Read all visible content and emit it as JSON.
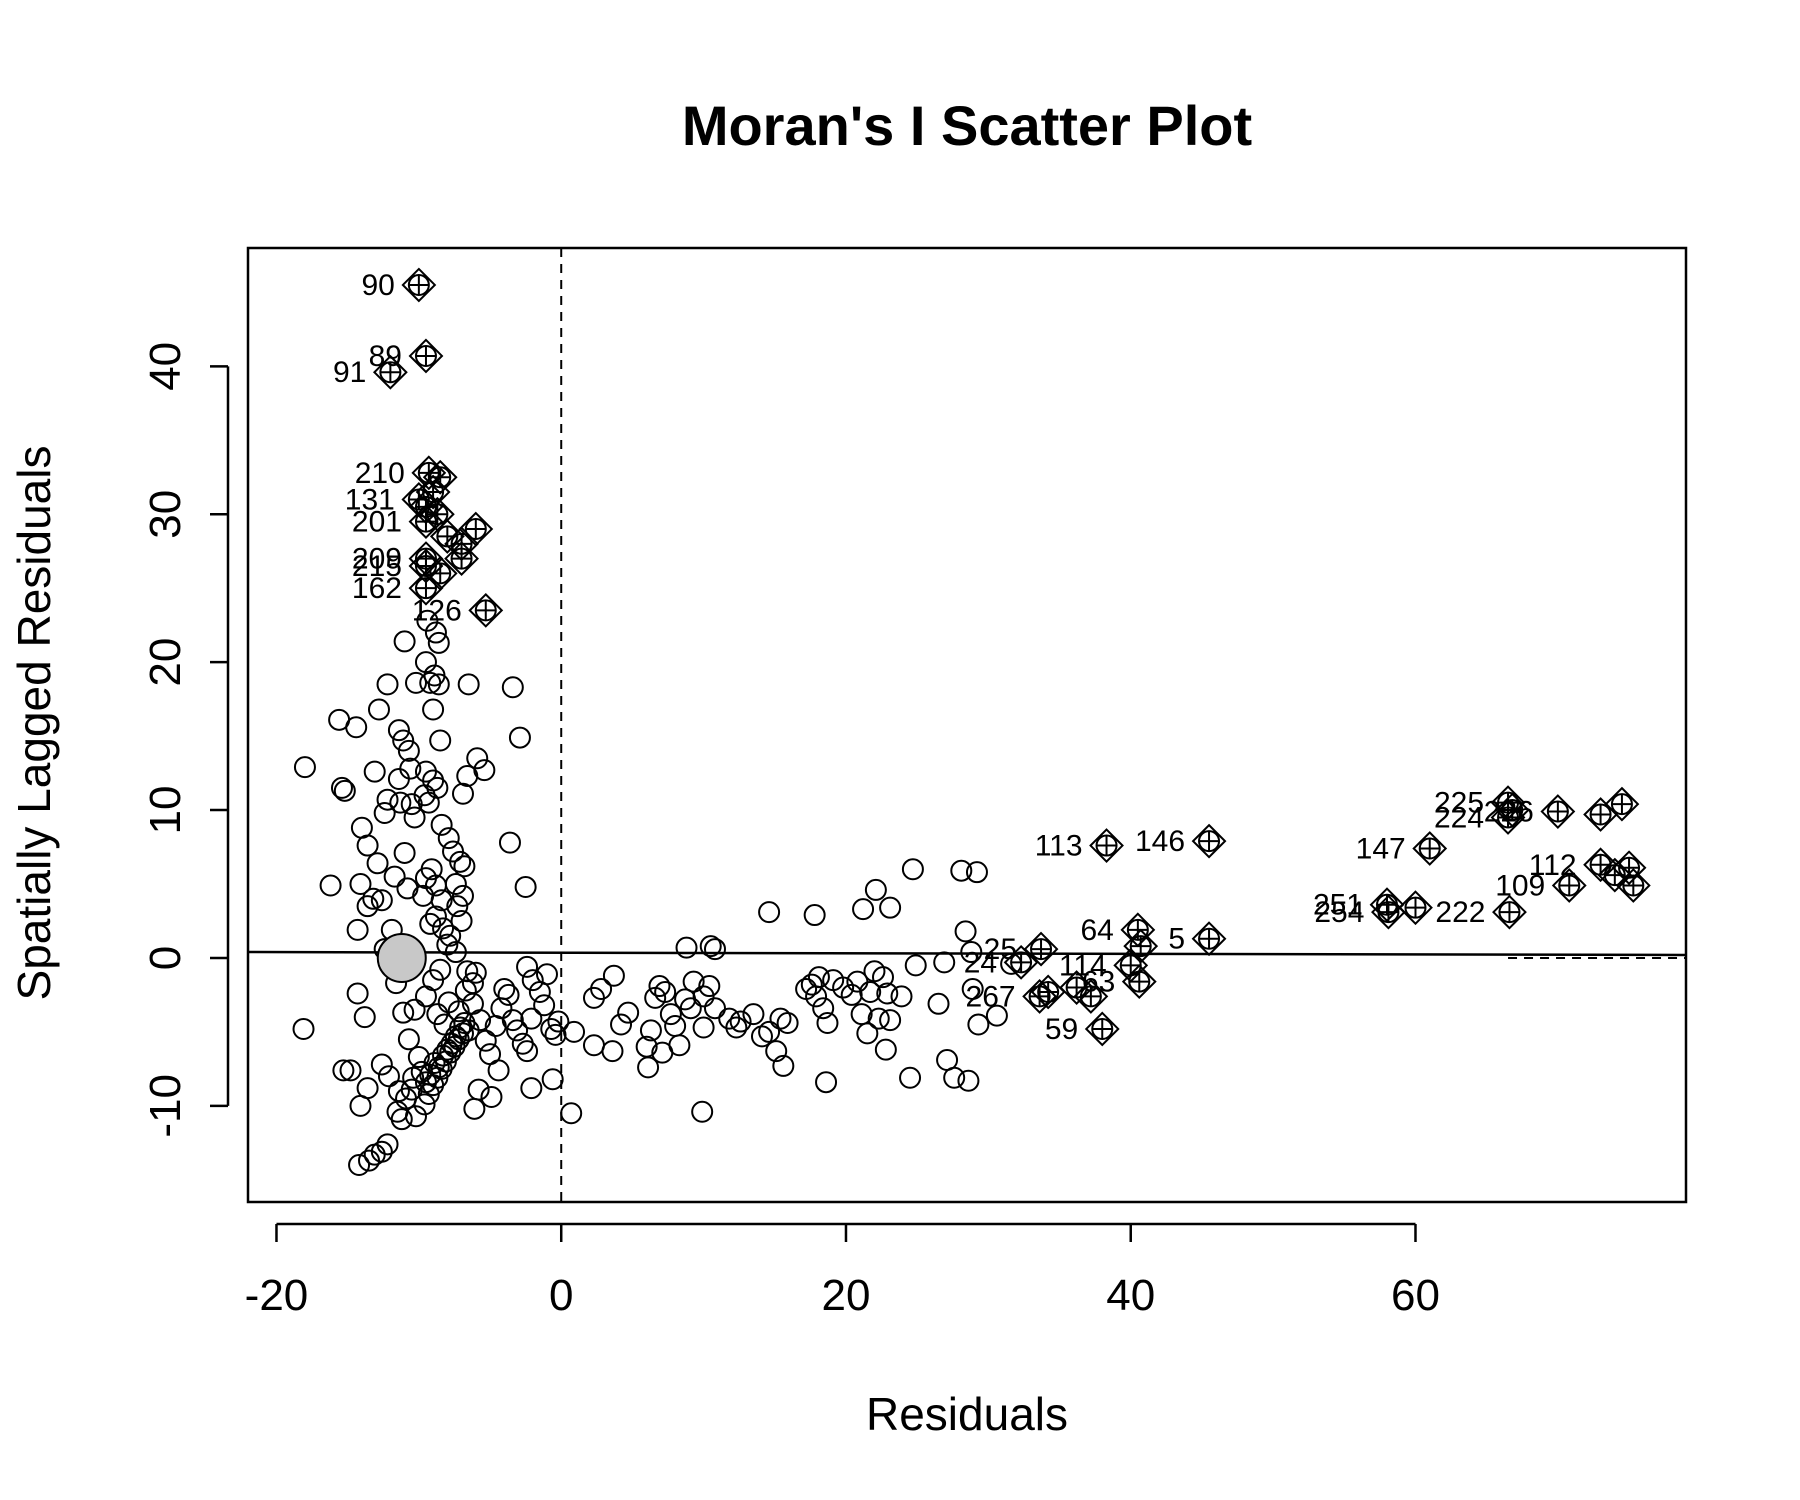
{
  "chart_data": {
    "type": "scatter",
    "title": "Moran's I Scatter Plot",
    "xlabel": "Residuals",
    "ylabel": "Spatially Lagged Residuals",
    "xlim": [
      -22,
      79
    ],
    "ylim": [
      -16.5,
      48
    ],
    "xticks": [
      -20,
      0,
      20,
      40,
      60
    ],
    "yticks": [
      -10,
      0,
      10,
      20,
      30,
      40
    ],
    "grid": false,
    "vline_x": 0,
    "hline_y": 0,
    "mean_point": {
      "x": -11.2,
      "y": 0
    },
    "regression_line": {
      "y_at_xmin": 0.4,
      "y_at_xmax": 0.2
    },
    "influential_points": [
      {
        "label": "90",
        "x": -10,
        "y": 45.5
      },
      {
        "label": "89",
        "x": -9.5,
        "y": 40.7
      },
      {
        "label": "91",
        "x": -12,
        "y": 39.6
      },
      {
        "label": "210",
        "x": -9.3,
        "y": 32.8
      },
      {
        "label": "131",
        "x": -10,
        "y": 31
      },
      {
        "label": "",
        "x": -9.5,
        "y": 30.5
      },
      {
        "label": "",
        "x": -8.5,
        "y": 32.5
      },
      {
        "label": "",
        "x": -9,
        "y": 31.5
      },
      {
        "label": "",
        "x": -8.7,
        "y": 30
      },
      {
        "label": "201",
        "x": -9.5,
        "y": 29.5
      },
      {
        "label": "",
        "x": -6,
        "y": 29
      },
      {
        "label": "",
        "x": -7,
        "y": 28
      },
      {
        "label": "",
        "x": -8,
        "y": 28.5
      },
      {
        "label": "209",
        "x": -9.5,
        "y": 27
      },
      {
        "label": "",
        "x": -7,
        "y": 27
      },
      {
        "label": "",
        "x": -8.5,
        "y": 26
      },
      {
        "label": "215",
        "x": -9.5,
        "y": 26.5
      },
      {
        "label": "162",
        "x": -9.5,
        "y": 25
      },
      {
        "label": "126",
        "x": -5.3,
        "y": 23.5
      },
      {
        "label": "113",
        "x": 38.3,
        "y": 7.6
      },
      {
        "label": "146",
        "x": 45.5,
        "y": 7.9
      },
      {
        "label": "147",
        "x": 61,
        "y": 7.4
      },
      {
        "label": "225",
        "x": 66.5,
        "y": 10.5
      },
      {
        "label": "224",
        "x": 66.5,
        "y": 9.5
      },
      {
        "label": "",
        "x": 66.8,
        "y": 10
      },
      {
        "label": "226",
        "x": 70,
        "y": 9.9
      },
      {
        "label": "",
        "x": 73,
        "y": 9.7
      },
      {
        "label": "",
        "x": 74.5,
        "y": 10.4
      },
      {
        "label": "112",
        "x": 73,
        "y": 6.3
      },
      {
        "label": "",
        "x": 75,
        "y": 6.1
      },
      {
        "label": "",
        "x": 74,
        "y": 5.6
      },
      {
        "label": "109",
        "x": 70.8,
        "y": 4.9
      },
      {
        "label": "",
        "x": 75.3,
        "y": 4.9
      },
      {
        "label": "251",
        "x": 58,
        "y": 3.6
      },
      {
        "label": "254",
        "x": 58.1,
        "y": 3.1
      },
      {
        "label": "",
        "x": 60,
        "y": 3.4
      },
      {
        "label": "222",
        "x": 66.6,
        "y": 3.1
      },
      {
        "label": "64",
        "x": 40.5,
        "y": 1.9
      },
      {
        "label": "5",
        "x": 45.5,
        "y": 1.3
      },
      {
        "label": "",
        "x": 40.7,
        "y": 0.8
      },
      {
        "label": "25",
        "x": 33.7,
        "y": 0.6
      },
      {
        "label": "24",
        "x": 32.3,
        "y": -0.3
      },
      {
        "label": "114",
        "x": 40,
        "y": -0.5
      },
      {
        "label": "63",
        "x": 40.6,
        "y": -1.6
      },
      {
        "label": "",
        "x": 36.2,
        "y": -2
      },
      {
        "label": "267",
        "x": 33.6,
        "y": -2.6
      },
      {
        "label": "",
        "x": 34.2,
        "y": -2.3
      },
      {
        "label": "",
        "x": 37.2,
        "y": -2.6
      },
      {
        "label": "59",
        "x": 38,
        "y": -4.8
      }
    ],
    "points": [
      {
        "x": -18,
        "y": 12.9
      },
      {
        "x": -18.1,
        "y": -4.8
      },
      {
        "x": -15.6,
        "y": 16.1
      },
      {
        "x": -15.4,
        "y": 11.5
      },
      {
        "x": -15.2,
        "y": 11.3
      },
      {
        "x": -14.4,
        "y": 15.6
      },
      {
        "x": -16.2,
        "y": 4.9
      },
      {
        "x": -15.3,
        "y": -7.6
      },
      {
        "x": -14.8,
        "y": -7.6
      },
      {
        "x": -14.2,
        "y": -14
      },
      {
        "x": -13.5,
        "y": -13.7
      },
      {
        "x": -13.1,
        "y": -13.3
      },
      {
        "x": -12.6,
        "y": -13.1
      },
      {
        "x": -12.2,
        "y": -12.6
      },
      {
        "x": -14.1,
        "y": -10
      },
      {
        "x": -13.6,
        "y": -8.8
      },
      {
        "x": -12.6,
        "y": -7.2
      },
      {
        "x": -12.1,
        "y": -8
      },
      {
        "x": -11.5,
        "y": -10.4
      },
      {
        "x": -11.2,
        "y": -10.9
      },
      {
        "x": -11.4,
        "y": -9
      },
      {
        "x": -10.9,
        "y": -9.5
      },
      {
        "x": -10.5,
        "y": -8.9
      },
      {
        "x": -10.2,
        "y": -10.7
      },
      {
        "x": -14.3,
        "y": -2.4
      },
      {
        "x": -13.8,
        "y": -4
      },
      {
        "x": -14.1,
        "y": 5
      },
      {
        "x": -13.6,
        "y": 3.5
      },
      {
        "x": -13.2,
        "y": 4
      },
      {
        "x": -14.3,
        "y": 1.9
      },
      {
        "x": -12.9,
        "y": 6.4
      },
      {
        "x": -13.6,
        "y": 7.6
      },
      {
        "x": -14,
        "y": 8.8
      },
      {
        "x": -12.4,
        "y": 9.8
      },
      {
        "x": -12.2,
        "y": 10.7
      },
      {
        "x": -13.1,
        "y": 12.6
      },
      {
        "x": -12.8,
        "y": 16.8
      },
      {
        "x": -12.2,
        "y": 18.5
      },
      {
        "x": -11.4,
        "y": 15.4
      },
      {
        "x": -11.1,
        "y": 14.7
      },
      {
        "x": -10.7,
        "y": 14
      },
      {
        "x": -11,
        "y": 21.4
      },
      {
        "x": -10.2,
        "y": 18.6
      },
      {
        "x": -10.6,
        "y": 12.8
      },
      {
        "x": -11.4,
        "y": 12.1
      },
      {
        "x": -11.3,
        "y": 10.5
      },
      {
        "x": -10.5,
        "y": 10.4
      },
      {
        "x": -10.3,
        "y": 9.5
      },
      {
        "x": -11,
        "y": 7.1
      },
      {
        "x": -11.7,
        "y": 5.5
      },
      {
        "x": -10.8,
        "y": 4.7
      },
      {
        "x": -12.6,
        "y": 3.9
      },
      {
        "x": -11.9,
        "y": 1.9
      },
      {
        "x": -12.4,
        "y": 0.6
      },
      {
        "x": -11.6,
        "y": -1.7
      },
      {
        "x": -11.1,
        "y": -3.7
      },
      {
        "x": -10.3,
        "y": -3.5
      },
      {
        "x": -10.7,
        "y": -5.5
      },
      {
        "x": -10,
        "y": -6.7
      },
      {
        "x": -10.4,
        "y": -8.1
      },
      {
        "x": -9.8,
        "y": -7.7
      },
      {
        "x": -9.5,
        "y": -8.4
      },
      {
        "x": -9.2,
        "y": -7.9
      },
      {
        "x": -8.9,
        "y": -7.1
      },
      {
        "x": -8.6,
        "y": -7.4
      },
      {
        "x": -8.3,
        "y": -6.6
      },
      {
        "x": -8,
        "y": -6.2
      },
      {
        "x": -7.7,
        "y": -5.8
      },
      {
        "x": -7.4,
        "y": -5.3
      },
      {
        "x": -7.1,
        "y": -4.7
      },
      {
        "x": -6.8,
        "y": -4.4
      },
      {
        "x": -6.5,
        "y": -4.9
      },
      {
        "x": -9.6,
        "y": -9.9
      },
      {
        "x": -9.3,
        "y": -9.2
      },
      {
        "x": -9,
        "y": -8.6
      },
      {
        "x": -8.7,
        "y": -8.1
      },
      {
        "x": -8.4,
        "y": -7.5
      },
      {
        "x": -8.1,
        "y": -7
      },
      {
        "x": -7.8,
        "y": -6.4
      },
      {
        "x": -7.5,
        "y": -6
      },
      {
        "x": -7.2,
        "y": -5.5
      },
      {
        "x": -6.9,
        "y": -5.1
      },
      {
        "x": -9.4,
        "y": 22.8
      },
      {
        "x": -8.8,
        "y": 22
      },
      {
        "x": -8.6,
        "y": 21.3
      },
      {
        "x": -9.5,
        "y": 20
      },
      {
        "x": -8.9,
        "y": 19.1
      },
      {
        "x": -9.2,
        "y": 18.6
      },
      {
        "x": -8.6,
        "y": 18.5
      },
      {
        "x": -9,
        "y": 16.8
      },
      {
        "x": -8.5,
        "y": 14.7
      },
      {
        "x": -9.5,
        "y": 12.6
      },
      {
        "x": -9,
        "y": 12
      },
      {
        "x": -8.7,
        "y": 11.5
      },
      {
        "x": -9.6,
        "y": 11
      },
      {
        "x": -9.3,
        "y": 10.5
      },
      {
        "x": -8.4,
        "y": 9
      },
      {
        "x": -7.9,
        "y": 8.1
      },
      {
        "x": -7.6,
        "y": 7.2
      },
      {
        "x": -7.1,
        "y": 6.5
      },
      {
        "x": -6.8,
        "y": 6.2
      },
      {
        "x": -7.4,
        "y": 5
      },
      {
        "x": -6.9,
        "y": 4.2
      },
      {
        "x": -7.3,
        "y": 3.5
      },
      {
        "x": -7,
        "y": 2.5
      },
      {
        "x": -7.8,
        "y": 1.5
      },
      {
        "x": -8.3,
        "y": 2
      },
      {
        "x": -8.8,
        "y": 2.8
      },
      {
        "x": -9.2,
        "y": 2.3
      },
      {
        "x": -9.7,
        "y": 4.2
      },
      {
        "x": -9.5,
        "y": 5.4
      },
      {
        "x": -9.1,
        "y": 6
      },
      {
        "x": -8.8,
        "y": 4.9
      },
      {
        "x": -8.4,
        "y": 3.9
      },
      {
        "x": -8,
        "y": 0.9
      },
      {
        "x": -7.4,
        "y": 0.4
      },
      {
        "x": -6.6,
        "y": -0.9
      },
      {
        "x": -6.2,
        "y": -1.7
      },
      {
        "x": -6.7,
        "y": -2.2
      },
      {
        "x": -8.5,
        "y": -0.8
      },
      {
        "x": -9,
        "y": -1.5
      },
      {
        "x": -9.5,
        "y": -2.6
      },
      {
        "x": -8.7,
        "y": -3.8
      },
      {
        "x": -8.2,
        "y": -4.5
      },
      {
        "x": -7.9,
        "y": -3
      },
      {
        "x": -7.2,
        "y": -3.6
      },
      {
        "x": -6.9,
        "y": 11.1
      },
      {
        "x": -6.6,
        "y": 12.3
      },
      {
        "x": -5.9,
        "y": 13.5
      },
      {
        "x": -5.4,
        "y": 12.7
      },
      {
        "x": -6.5,
        "y": 18.5
      },
      {
        "x": -3.4,
        "y": 18.3
      },
      {
        "x": -2.9,
        "y": 14.9
      },
      {
        "x": -3.6,
        "y": 7.8
      },
      {
        "x": -2.5,
        "y": 4.8
      },
      {
        "x": -6,
        "y": -1
      },
      {
        "x": -6.2,
        "y": -3.1
      },
      {
        "x": -5.7,
        "y": -4.2
      },
      {
        "x": -5.3,
        "y": -5.6
      },
      {
        "x": -5,
        "y": -6.5
      },
      {
        "x": -4.6,
        "y": -4.6
      },
      {
        "x": -4.2,
        "y": -3.4
      },
      {
        "x": -4,
        "y": -2.1
      },
      {
        "x": -3.7,
        "y": -2.5
      },
      {
        "x": -3.4,
        "y": -4.2
      },
      {
        "x": -3.1,
        "y": -4.9
      },
      {
        "x": -2.7,
        "y": -5.8
      },
      {
        "x": -2.4,
        "y": -6.3
      },
      {
        "x": -2.1,
        "y": -4.1
      },
      {
        "x": -2.4,
        "y": -0.6
      },
      {
        "x": -2,
        "y": -1.5
      },
      {
        "x": -1.5,
        "y": -2.3
      },
      {
        "x": -1.2,
        "y": -3.2
      },
      {
        "x": -1,
        "y": -1.1
      },
      {
        "x": -0.7,
        "y": -4.8
      },
      {
        "x": -0.4,
        "y": -5.2
      },
      {
        "x": -0.2,
        "y": -4.3
      },
      {
        "x": -2.1,
        "y": -8.8
      },
      {
        "x": -4.4,
        "y": -7.6
      },
      {
        "x": -4.9,
        "y": -9.4
      },
      {
        "x": -5.8,
        "y": -8.9
      },
      {
        "x": -6.1,
        "y": -10.2
      },
      {
        "x": -0.6,
        "y": -8.2
      },
      {
        "x": 0.7,
        "y": -10.5
      },
      {
        "x": 0.9,
        "y": -5
      },
      {
        "x": 2.3,
        "y": -2.7
      },
      {
        "x": 2.8,
        "y": -2.1
      },
      {
        "x": 3.7,
        "y": -1.2
      },
      {
        "x": 2.3,
        "y": -5.9
      },
      {
        "x": 3.6,
        "y": -6.3
      },
      {
        "x": 4.2,
        "y": -4.5
      },
      {
        "x": 4.7,
        "y": -3.7
      },
      {
        "x": 6,
        "y": -6
      },
      {
        "x": 6.1,
        "y": -7.4
      },
      {
        "x": 6.3,
        "y": -4.9
      },
      {
        "x": 6.6,
        "y": -2.7
      },
      {
        "x": 6.9,
        "y": -1.9
      },
      {
        "x": 7.3,
        "y": -2.3
      },
      {
        "x": 7.7,
        "y": -3.8
      },
      {
        "x": 8,
        "y": -4.6
      },
      {
        "x": 8.3,
        "y": -5.9
      },
      {
        "x": 8.7,
        "y": -2.8
      },
      {
        "x": 9.1,
        "y": -3.4
      },
      {
        "x": 9.3,
        "y": -1.6
      },
      {
        "x": 10,
        "y": -2.6
      },
      {
        "x": 10.4,
        "y": -1.9
      },
      {
        "x": 10.8,
        "y": -3.4
      },
      {
        "x": 10,
        "y": -4.7
      },
      {
        "x": 7.1,
        "y": -6.4
      },
      {
        "x": 9.9,
        "y": -10.4
      },
      {
        "x": 10.5,
        "y": 0.8
      },
      {
        "x": 10.8,
        "y": 0.6
      },
      {
        "x": 8.8,
        "y": 0.7
      },
      {
        "x": 11.8,
        "y": -4.1
      },
      {
        "x": 12.3,
        "y": -4.7
      },
      {
        "x": 12.6,
        "y": -4.3
      },
      {
        "x": 13.5,
        "y": -3.8
      },
      {
        "x": 14.1,
        "y": -5.3
      },
      {
        "x": 14.6,
        "y": -5
      },
      {
        "x": 15.1,
        "y": -6.3
      },
      {
        "x": 15.4,
        "y": -4.1
      },
      {
        "x": 15.9,
        "y": -4.4
      },
      {
        "x": 15.6,
        "y": -7.3
      },
      {
        "x": 14.6,
        "y": 3.1
      },
      {
        "x": 17.8,
        "y": 2.9
      },
      {
        "x": 17.2,
        "y": -2.1
      },
      {
        "x": 17.6,
        "y": -1.8
      },
      {
        "x": 17.9,
        "y": -2.6
      },
      {
        "x": 18.1,
        "y": -1.3
      },
      {
        "x": 18.4,
        "y": -3.4
      },
      {
        "x": 18.7,
        "y": -4.4
      },
      {
        "x": 18.6,
        "y": -8.4
      },
      {
        "x": 19.1,
        "y": -1.5
      },
      {
        "x": 19.8,
        "y": -2
      },
      {
        "x": 20.4,
        "y": -2.5
      },
      {
        "x": 20.8,
        "y": -1.6
      },
      {
        "x": 21.1,
        "y": -3.8
      },
      {
        "x": 21.5,
        "y": -5.1
      },
      {
        "x": 21.7,
        "y": -2.3
      },
      {
        "x": 22,
        "y": -0.9
      },
      {
        "x": 22.3,
        "y": -4.1
      },
      {
        "x": 22.6,
        "y": -1.3
      },
      {
        "x": 22.9,
        "y": -2.4
      },
      {
        "x": 23.1,
        "y": -4.2
      },
      {
        "x": 22.8,
        "y": -6.2
      },
      {
        "x": 21.2,
        "y": 3.3
      },
      {
        "x": 22.1,
        "y": 4.6
      },
      {
        "x": 23.1,
        "y": 3.4
      },
      {
        "x": 23.9,
        "y": -2.6
      },
      {
        "x": 24.5,
        "y": -8.1
      },
      {
        "x": 24.7,
        "y": 6
      },
      {
        "x": 24.9,
        "y": -0.5
      },
      {
        "x": 26.5,
        "y": -3.1
      },
      {
        "x": 26.9,
        "y": -0.3
      },
      {
        "x": 27.1,
        "y": -6.9
      },
      {
        "x": 27.6,
        "y": -8.1
      },
      {
        "x": 28.1,
        "y": 5.9
      },
      {
        "x": 28.6,
        "y": -8.3
      },
      {
        "x": 28.4,
        "y": 1.8
      },
      {
        "x": 28.8,
        "y": 0.4
      },
      {
        "x": 28.9,
        "y": -2.1
      },
      {
        "x": 29.3,
        "y": -4.5
      },
      {
        "x": 29.2,
        "y": 5.8
      },
      {
        "x": 30.6,
        "y": -3.9
      },
      {
        "x": 31.6,
        "y": -0.4
      }
    ]
  }
}
